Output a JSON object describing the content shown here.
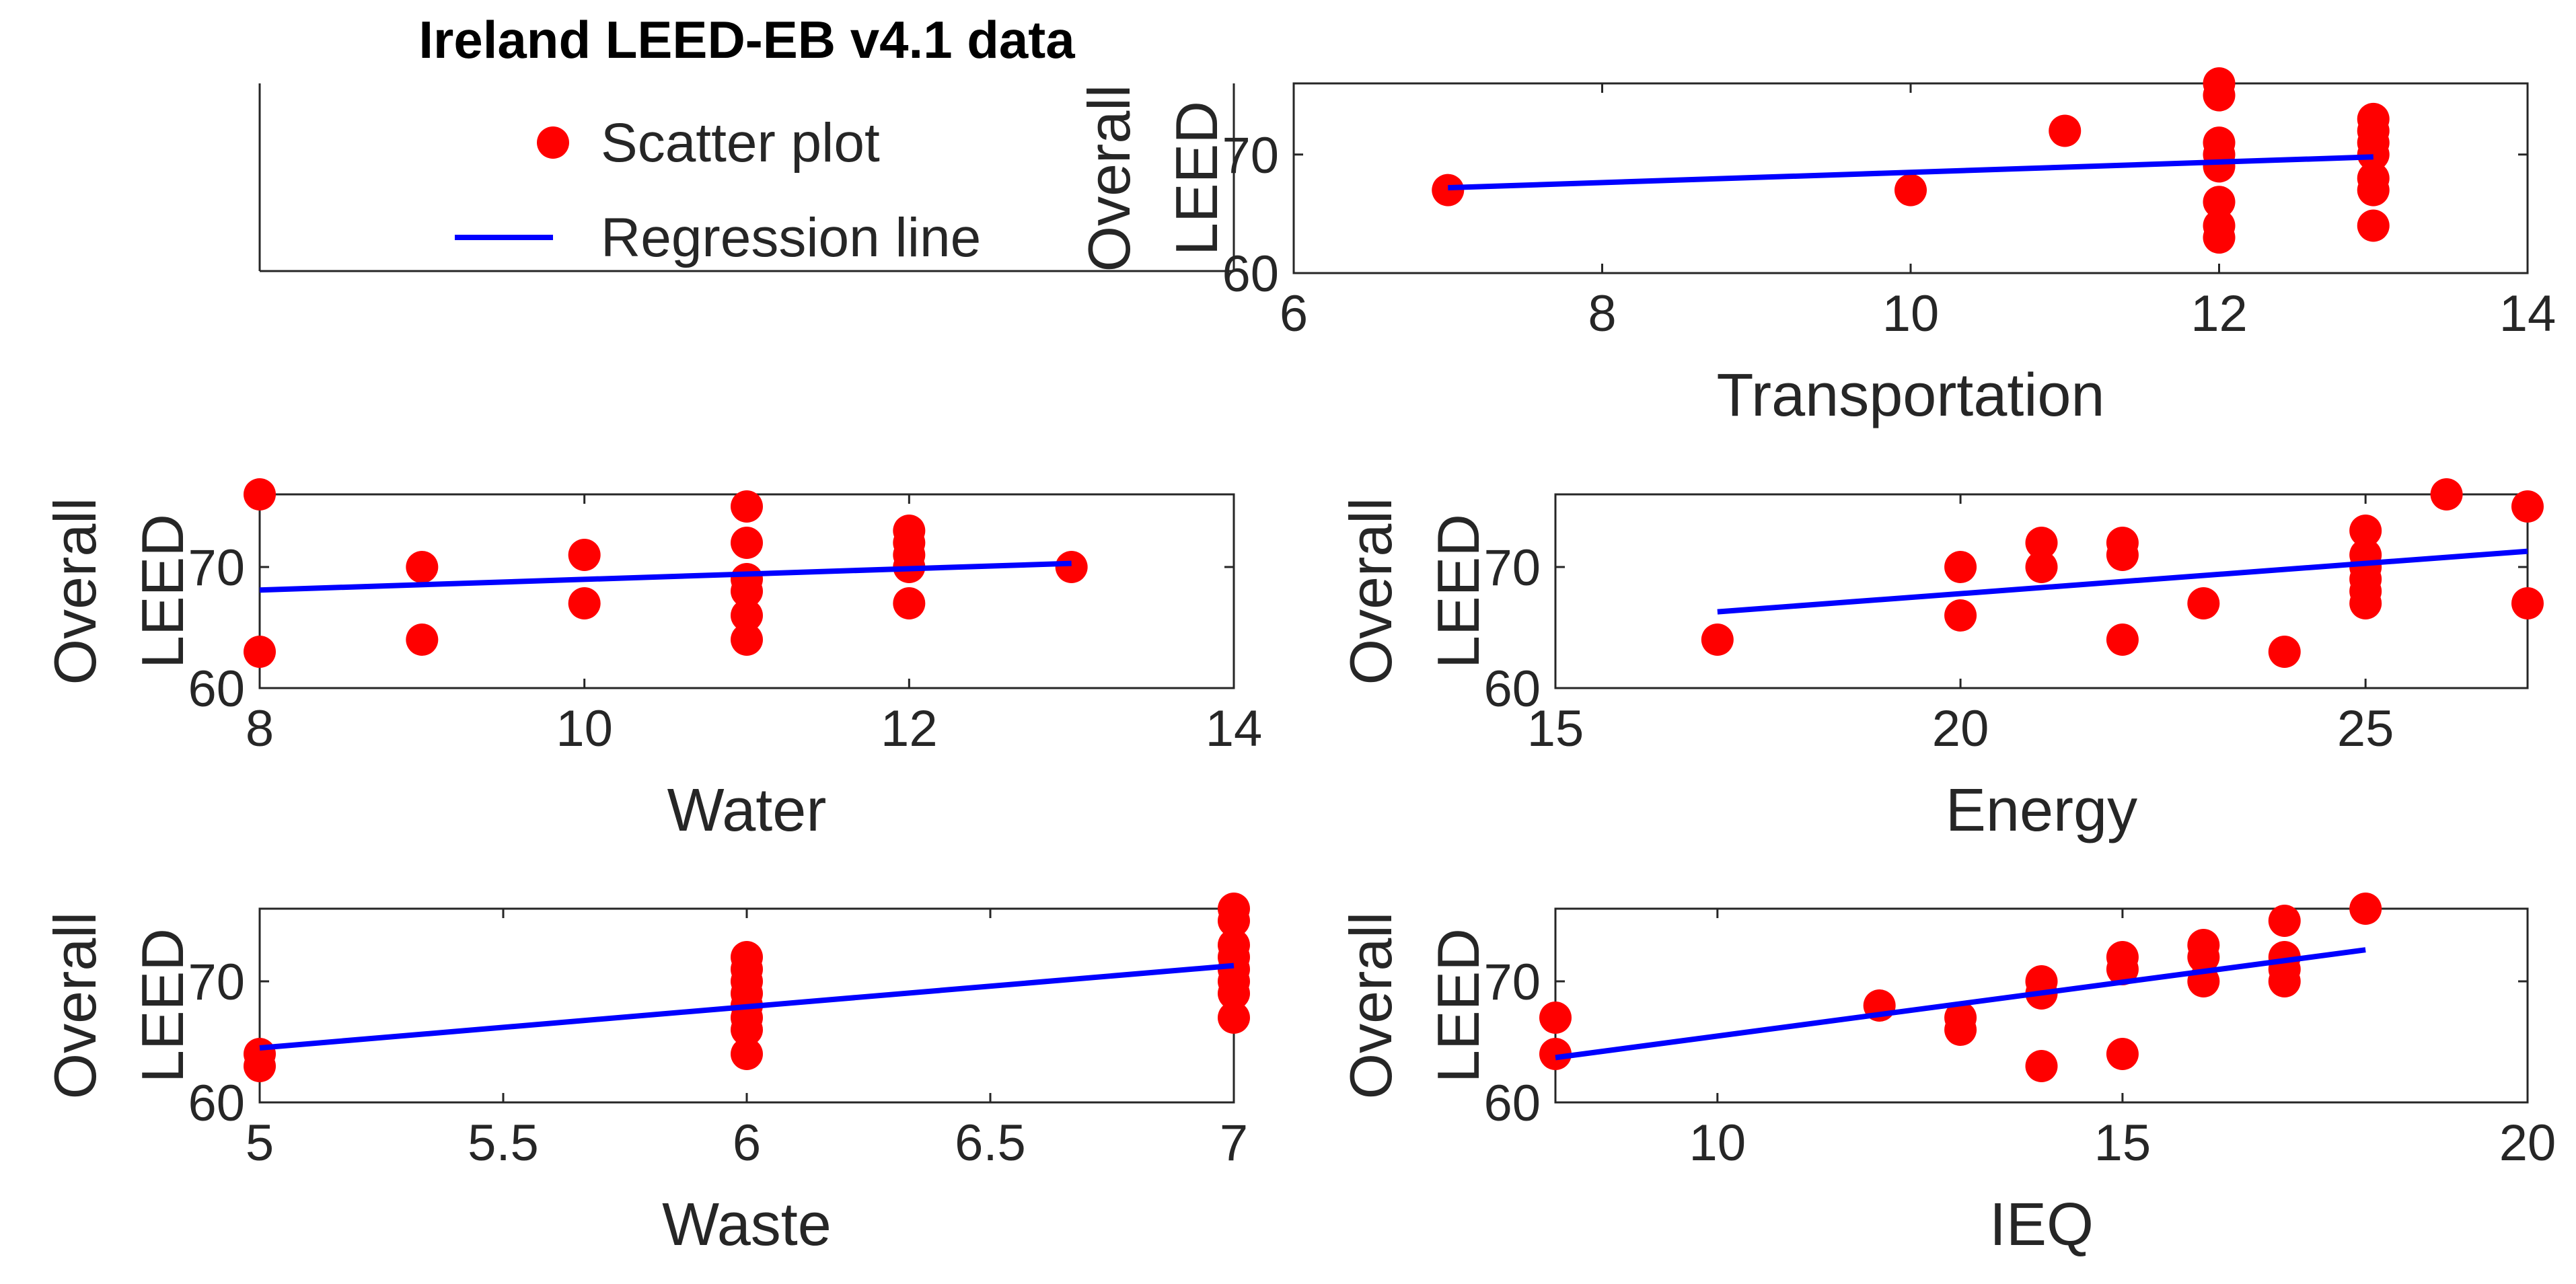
{
  "colors": {
    "scatter": "#ff0000",
    "regression": "#0000ff",
    "axis": "#262626",
    "text": "#262626",
    "background": "#ffffff"
  },
  "legend": {
    "title": "Ireland LEED-EB v4.1 data",
    "entries": [
      {
        "label": "Scatter plot",
        "marker": "circle",
        "color": "#ff0000"
      },
      {
        "label": "Regression line",
        "marker": "line",
        "color": "#0000ff"
      }
    ]
  },
  "chart_data": [
    {
      "id": "transportation",
      "type": "scatter",
      "xlabel": "Transportation",
      "ylabel": [
        "Overall",
        "LEED"
      ],
      "xlim": [
        6,
        14
      ],
      "ylim": [
        60,
        76
      ],
      "xticks": [
        6,
        8,
        10,
        12,
        14
      ],
      "yticks": [
        60,
        70
      ],
      "points": [
        [
          7,
          67
        ],
        [
          10,
          67
        ],
        [
          11,
          72
        ],
        [
          12,
          76
        ],
        [
          12,
          75
        ],
        [
          12,
          71
        ],
        [
          12,
          70
        ],
        [
          12,
          69
        ],
        [
          12,
          66
        ],
        [
          12,
          64
        ],
        [
          12,
          63
        ],
        [
          13,
          73
        ],
        [
          13,
          72
        ],
        [
          13,
          71
        ],
        [
          13,
          70
        ],
        [
          13,
          68
        ],
        [
          13,
          67
        ],
        [
          13,
          64
        ]
      ],
      "regression": {
        "x": [
          7,
          13
        ],
        "y": [
          67.2,
          69.8
        ]
      }
    },
    {
      "id": "water",
      "type": "scatter",
      "xlabel": "Water",
      "ylabel": [
        "Overall",
        "LEED"
      ],
      "xlim": [
        8,
        14
      ],
      "ylim": [
        60,
        76
      ],
      "xticks": [
        8,
        10,
        12,
        14
      ],
      "yticks": [
        60,
        70
      ],
      "points": [
        [
          8,
          76
        ],
        [
          8,
          63
        ],
        [
          9,
          70
        ],
        [
          9,
          64
        ],
        [
          10,
          71
        ],
        [
          10,
          67
        ],
        [
          11,
          75
        ],
        [
          11,
          72
        ],
        [
          11,
          69
        ],
        [
          11,
          68
        ],
        [
          11,
          66
        ],
        [
          11,
          64
        ],
        [
          12,
          73
        ],
        [
          12,
          72
        ],
        [
          12,
          71
        ],
        [
          12,
          70
        ],
        [
          12,
          67
        ],
        [
          13,
          70
        ]
      ],
      "regression": {
        "x": [
          8,
          13
        ],
        "y": [
          68.1,
          70.3
        ]
      }
    },
    {
      "id": "energy",
      "type": "scatter",
      "xlabel": "Energy",
      "ylabel": [
        "Overall",
        "LEED"
      ],
      "xlim": [
        15,
        27
      ],
      "ylim": [
        60,
        76
      ],
      "xticks": [
        15,
        20,
        25
      ],
      "yticks": [
        60,
        70
      ],
      "points": [
        [
          17,
          64
        ],
        [
          20,
          70
        ],
        [
          20,
          66
        ],
        [
          21,
          72
        ],
        [
          21,
          70
        ],
        [
          22,
          72
        ],
        [
          22,
          71
        ],
        [
          22,
          64
        ],
        [
          23,
          67
        ],
        [
          24,
          63
        ],
        [
          25,
          73
        ],
        [
          25,
          71
        ],
        [
          25,
          70
        ],
        [
          25,
          69
        ],
        [
          25,
          68
        ],
        [
          25,
          67
        ],
        [
          26,
          76
        ],
        [
          27,
          75
        ],
        [
          27,
          67
        ]
      ],
      "regression": {
        "x": [
          17,
          27
        ],
        "y": [
          66.3,
          71.3
        ]
      }
    },
    {
      "id": "waste",
      "type": "scatter",
      "xlabel": "Waste",
      "ylabel": [
        "Overall",
        "LEED"
      ],
      "xlim": [
        5,
        7
      ],
      "ylim": [
        60,
        76
      ],
      "xticks": [
        5,
        5.5,
        6,
        6.5,
        7
      ],
      "xtickLabels": [
        "5",
        "5.5",
        "6",
        "6.5",
        "7"
      ],
      "yticks": [
        60,
        70
      ],
      "points": [
        [
          5,
          64
        ],
        [
          5,
          63
        ],
        [
          6,
          72
        ],
        [
          6,
          71
        ],
        [
          6,
          70
        ],
        [
          6,
          69
        ],
        [
          6,
          68
        ],
        [
          6,
          67
        ],
        [
          6,
          66
        ],
        [
          6,
          64
        ],
        [
          7,
          76
        ],
        [
          7,
          75
        ],
        [
          7,
          73
        ],
        [
          7,
          72
        ],
        [
          7,
          71
        ],
        [
          7,
          70
        ],
        [
          7,
          69
        ],
        [
          7,
          67
        ]
      ],
      "regression": {
        "x": [
          5,
          7
        ],
        "y": [
          64.5,
          71.3
        ]
      }
    },
    {
      "id": "ieq",
      "type": "scatter",
      "xlabel": "IEQ",
      "ylabel": [
        "Overall",
        "LEED"
      ],
      "xlim": [
        8,
        20
      ],
      "ylim": [
        60,
        76
      ],
      "xticks": [
        10,
        15,
        20
      ],
      "yticks": [
        60,
        70
      ],
      "points": [
        [
          8,
          67
        ],
        [
          8,
          64
        ],
        [
          12,
          68
        ],
        [
          13,
          67
        ],
        [
          13,
          66
        ],
        [
          14,
          70
        ],
        [
          14,
          69
        ],
        [
          14,
          63
        ],
        [
          15,
          72
        ],
        [
          15,
          71
        ],
        [
          15,
          64
        ],
        [
          16,
          73
        ],
        [
          16,
          72
        ],
        [
          16,
          70
        ],
        [
          17,
          75
        ],
        [
          17,
          72
        ],
        [
          17,
          71
        ],
        [
          17,
          70
        ],
        [
          18,
          76
        ]
      ],
      "regression": {
        "x": [
          8,
          18
        ],
        "y": [
          63.7,
          72.6
        ]
      }
    }
  ]
}
